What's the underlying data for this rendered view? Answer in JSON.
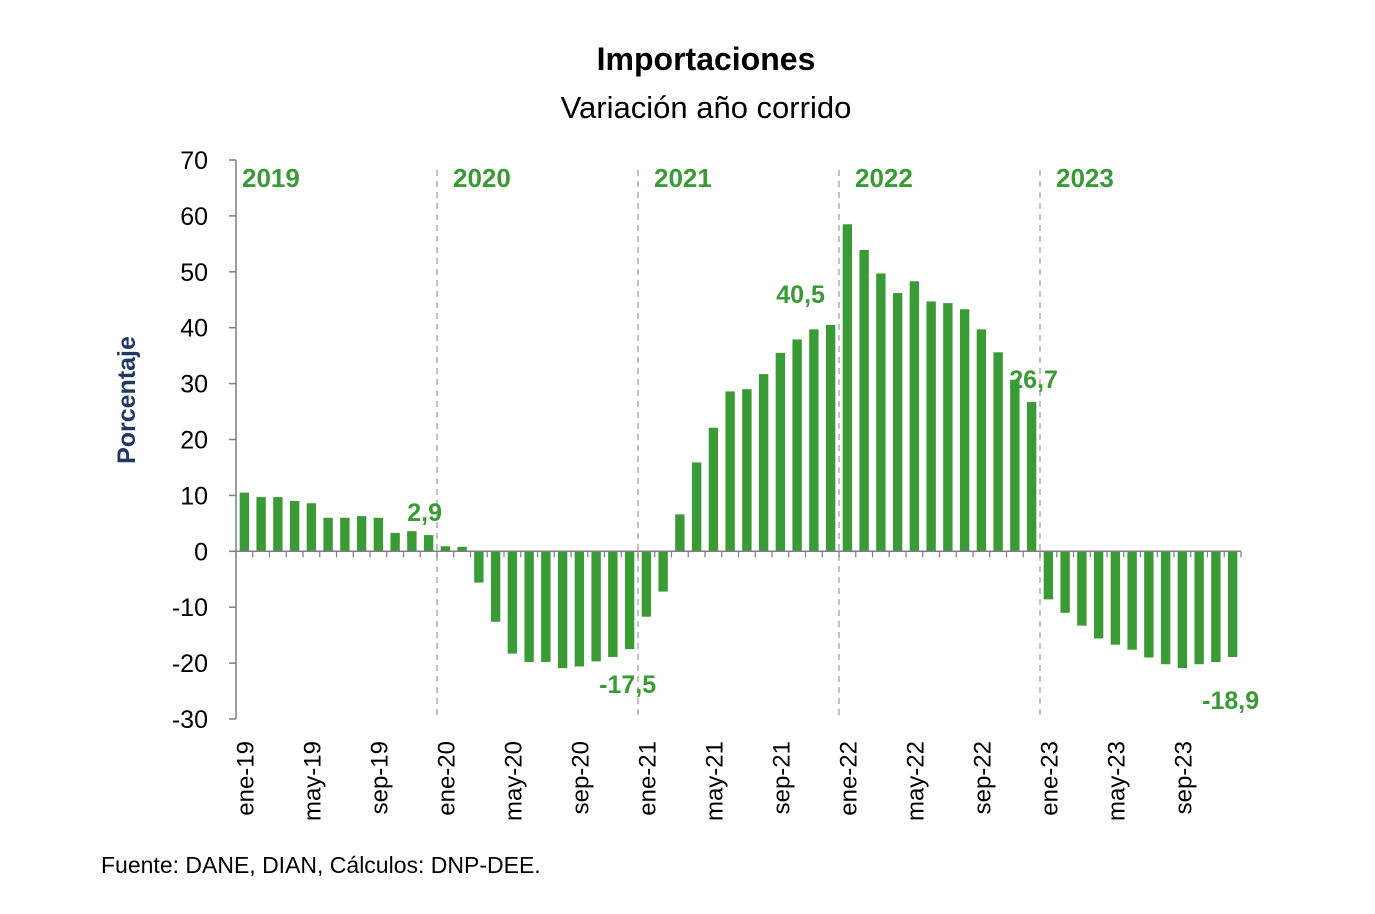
{
  "chart_data": {
    "type": "bar",
    "title": "Importaciones",
    "subtitle": "Variación año corrido",
    "ylabel": "Porcentaje",
    "ylim": [
      -30,
      70
    ],
    "yticks": [
      70,
      60,
      50,
      40,
      30,
      20,
      10,
      0,
      -10,
      -20,
      -30
    ],
    "grid": false,
    "bar_color": "#3a9a35",
    "label_color": "#3a9a35",
    "ylabel_color": "#1f3864",
    "categories": [
      "ene-19",
      "feb-19",
      "mar-19",
      "abr-19",
      "may-19",
      "jun-19",
      "jul-19",
      "ago-19",
      "sep-19",
      "oct-19",
      "nov-19",
      "dic-19",
      "ene-20",
      "feb-20",
      "mar-20",
      "abr-20",
      "may-20",
      "jun-20",
      "jul-20",
      "ago-20",
      "sep-20",
      "oct-20",
      "nov-20",
      "dic-20",
      "ene-21",
      "feb-21",
      "mar-21",
      "abr-21",
      "may-21",
      "jun-21",
      "jul-21",
      "ago-21",
      "sep-21",
      "oct-21",
      "nov-21",
      "dic-21",
      "ene-22",
      "feb-22",
      "mar-22",
      "abr-22",
      "may-22",
      "jun-22",
      "jul-22",
      "ago-22",
      "sep-22",
      "oct-22",
      "nov-22",
      "dic-22",
      "ene-23",
      "feb-23",
      "mar-23",
      "abr-23",
      "may-23",
      "jun-23",
      "jul-23",
      "ago-23",
      "sep-23",
      "oct-23",
      "nov-23",
      "dic-23"
    ],
    "x_tick_labels": [
      "ene-19",
      "may-19",
      "sep-19",
      "ene-20",
      "may-20",
      "sep-20",
      "ene-21",
      "may-21",
      "sep-21",
      "ene-22",
      "may-22",
      "sep-22",
      "ene-23",
      "may-23",
      "sep-23"
    ],
    "values": [
      10.5,
      9.7,
      9.7,
      9.0,
      8.6,
      6.0,
      6.0,
      6.3,
      6.0,
      3.3,
      3.6,
      2.9,
      0.9,
      0.8,
      -5.6,
      -12.6,
      -18.3,
      -19.8,
      -19.8,
      -20.9,
      -20.6,
      -19.7,
      -18.9,
      -17.5,
      -11.7,
      -7.2,
      6.6,
      15.9,
      22.1,
      28.6,
      29.0,
      31.7,
      35.5,
      37.9,
      39.7,
      40.5,
      58.5,
      53.9,
      49.7,
      46.2,
      48.3,
      44.7,
      44.4,
      43.3,
      39.7,
      35.6,
      30.7,
      26.7,
      -8.6,
      -11.0,
      -13.3,
      -15.6,
      -16.7,
      -17.6,
      -19.0,
      -20.2,
      -20.9,
      -20.2,
      -19.8,
      -18.9
    ],
    "years": [
      "2019",
      "2020",
      "2021",
      "2022",
      "2023"
    ],
    "annotations": [
      {
        "index": 11,
        "text": "2,9"
      },
      {
        "index": 23,
        "text": "-17,5"
      },
      {
        "index": 35,
        "text": "40,5"
      },
      {
        "index": 47,
        "text": "26,7"
      },
      {
        "index": 59,
        "text": "-18,9"
      }
    ]
  },
  "source": "Fuente: DANE, DIAN, Cálculos: DNP-DEE."
}
